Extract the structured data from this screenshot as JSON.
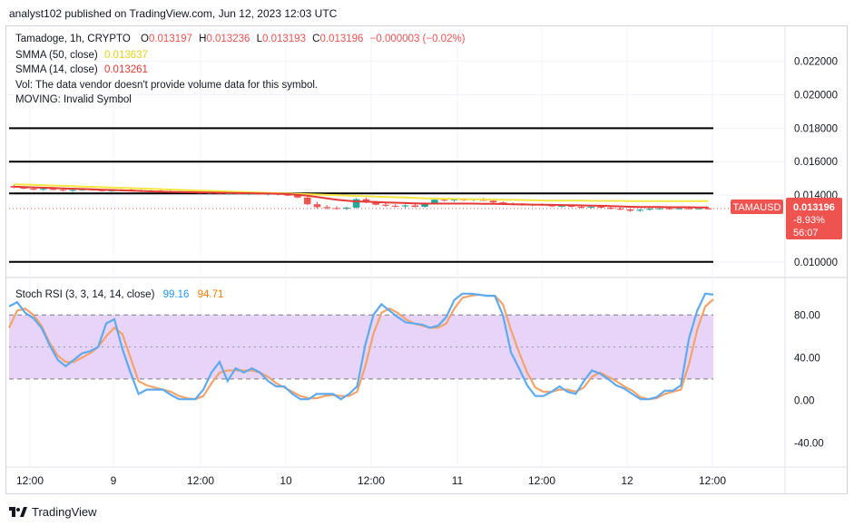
{
  "publisher": "analyst102 published on TradingView.com, Jun 12, 2023 12:03 UTC",
  "legend": {
    "symbol": "Tamadoge, 1h, CRYPTO",
    "o_label": "O",
    "o_value": "0.013197",
    "h_label": "H",
    "h_value": "0.013236",
    "l_label": "L",
    "l_value": "0.013193",
    "c_label": "C",
    "c_value": "0.013196",
    "change": "−0.000003 (−0.02%)",
    "smma50_label": "SMMA (50, close)",
    "smma50_value": "0.013637",
    "smma14_label": "SMMA (14, close)",
    "smma14_value": "0.013261",
    "vol_note": "Vol: The data vendor doesn't provide volume data for this symbol.",
    "moving_note": "MOVING: Invalid Symbol"
  },
  "price_tag": {
    "ticker": "TAMAUSD",
    "price": "0.013196",
    "change_pct": "-8.93%",
    "countdown": "56:07"
  },
  "rsi_legend": {
    "label": "Stoch RSI (3, 3, 14, 14, close)",
    "k_value": "99.16",
    "d_value": "94.71"
  },
  "footer": {
    "brand": "TradingView"
  },
  "colors": {
    "up": "#26a69a",
    "down": "#ef5350",
    "smma50": "#f5e642",
    "smma14": "#e53935",
    "rsi_k": "#5eaaf0",
    "rsi_d": "#f4a36b",
    "rsi_band": "#e4ccf8",
    "tag": "#ef5350"
  },
  "chart_data": [
    {
      "type": "candlestick",
      "y_ticks": [
        "0.022000",
        "0.020000",
        "0.018000",
        "0.016000",
        "0.014000",
        "0.010000"
      ],
      "ylim": [
        0.0095,
        0.0235
      ],
      "x_ticks": [
        "12:00",
        "9",
        "12:00",
        "10",
        "12:00",
        "11",
        "12:00",
        "12",
        "12:00"
      ],
      "horizontal_levels": [
        0.018,
        0.016,
        0.0141,
        0.01
      ],
      "last_price": 0.013196,
      "candles": [
        [
          0.01455,
          0.01462,
          0.0144,
          0.01445
        ],
        [
          0.01445,
          0.01452,
          0.01435,
          0.01438
        ],
        [
          0.01438,
          0.01445,
          0.01428,
          0.01432
        ],
        [
          0.01432,
          0.0144,
          0.01425,
          0.01437
        ],
        [
          0.01437,
          0.01442,
          0.01428,
          0.01431
        ],
        [
          0.01431,
          0.01438,
          0.01422,
          0.01426
        ],
        [
          0.01426,
          0.01434,
          0.0142,
          0.0143
        ],
        [
          0.0143,
          0.01438,
          0.01424,
          0.01434
        ],
        [
          0.01434,
          0.0144,
          0.01426,
          0.01429
        ],
        [
          0.01429,
          0.01436,
          0.0142,
          0.01424
        ],
        [
          0.01424,
          0.01432,
          0.01418,
          0.01428
        ],
        [
          0.01428,
          0.01436,
          0.01422,
          0.01432
        ],
        [
          0.01432,
          0.01438,
          0.01424,
          0.01427
        ],
        [
          0.01427,
          0.01432,
          0.01418,
          0.01422
        ],
        [
          0.01422,
          0.0143,
          0.01416,
          0.01426
        ],
        [
          0.01426,
          0.01432,
          0.01418,
          0.01421
        ],
        [
          0.01421,
          0.01428,
          0.01414,
          0.01418
        ],
        [
          0.01418,
          0.01426,
          0.01412,
          0.01422
        ],
        [
          0.01422,
          0.01428,
          0.01414,
          0.01416
        ],
        [
          0.01416,
          0.01422,
          0.01408,
          0.01412
        ],
        [
          0.01412,
          0.0142,
          0.01406,
          0.01415
        ],
        [
          0.01415,
          0.0142,
          0.01404,
          0.01408
        ],
        [
          0.01408,
          0.01416,
          0.01402,
          0.01412
        ],
        [
          0.01412,
          0.01418,
          0.01404,
          0.01406
        ],
        [
          0.01406,
          0.01414,
          0.014,
          0.0141
        ],
        [
          0.0141,
          0.01416,
          0.01402,
          0.01405
        ],
        [
          0.01405,
          0.01412,
          0.01398,
          0.01408
        ],
        [
          0.01408,
          0.01414,
          0.01398,
          0.01402
        ],
        [
          0.01402,
          0.01408,
          0.01394,
          0.01398
        ],
        [
          0.01398,
          0.01402,
          0.0138,
          0.01385
        ],
        [
          0.01385,
          0.0139,
          0.0134,
          0.01345
        ],
        [
          0.01345,
          0.0136,
          0.0132,
          0.01328
        ],
        [
          0.01328,
          0.0134,
          0.01315,
          0.01322
        ],
        [
          0.01322,
          0.01334,
          0.01312,
          0.01318
        ],
        [
          0.01318,
          0.0133,
          0.0131,
          0.01325
        ],
        [
          0.01325,
          0.01382,
          0.0132,
          0.01375
        ],
        [
          0.01375,
          0.01385,
          0.0135,
          0.01356
        ],
        [
          0.01356,
          0.01365,
          0.01338,
          0.01342
        ],
        [
          0.01342,
          0.01352,
          0.0133,
          0.01336
        ],
        [
          0.01336,
          0.01346,
          0.01326,
          0.01332
        ],
        [
          0.01332,
          0.01344,
          0.01322,
          0.01338
        ],
        [
          0.01338,
          0.01348,
          0.01326,
          0.0133
        ],
        [
          0.0133,
          0.01356,
          0.01325,
          0.0135
        ],
        [
          0.0135,
          0.0138,
          0.01345,
          0.01372
        ],
        [
          0.01372,
          0.01382,
          0.01362,
          0.01368
        ],
        [
          0.01368,
          0.01378,
          0.01358,
          0.01374
        ],
        [
          0.01374,
          0.01382,
          0.01364,
          0.0137
        ],
        [
          0.0137,
          0.0138,
          0.01362,
          0.01376
        ],
        [
          0.01376,
          0.01384,
          0.01364,
          0.01366
        ],
        [
          0.01366,
          0.01372,
          0.01352,
          0.01356
        ],
        [
          0.01356,
          0.01362,
          0.01344,
          0.01348
        ],
        [
          0.01348,
          0.01356,
          0.01338,
          0.01344
        ],
        [
          0.01344,
          0.01352,
          0.01336,
          0.0134
        ],
        [
          0.0134,
          0.01348,
          0.01332,
          0.01344
        ],
        [
          0.01344,
          0.0135,
          0.01334,
          0.01338
        ],
        [
          0.01338,
          0.01344,
          0.01328,
          0.01333
        ],
        [
          0.01333,
          0.01342,
          0.01326,
          0.01336
        ],
        [
          0.01336,
          0.01342,
          0.01326,
          0.0133
        ],
        [
          0.0133,
          0.01336,
          0.0132,
          0.01326
        ],
        [
          0.01326,
          0.01334,
          0.01318,
          0.0133
        ],
        [
          0.0133,
          0.01336,
          0.0132,
          0.01324
        ],
        [
          0.01324,
          0.0133,
          0.01314,
          0.01318
        ],
        [
          0.01318,
          0.01326,
          0.0131,
          0.01314
        ],
        [
          0.01314,
          0.0132,
          0.013,
          0.01306
        ],
        [
          0.01306,
          0.01318,
          0.013,
          0.01312
        ],
        [
          0.01312,
          0.01324,
          0.01306,
          0.01318
        ],
        [
          0.01318,
          0.01324,
          0.01312,
          0.0132
        ],
        [
          0.0132,
          0.01324,
          0.01314,
          0.01318
        ],
        [
          0.01318,
          0.01322,
          0.01316,
          0.0132
        ],
        [
          0.0132,
          0.01323,
          0.01318,
          0.01319
        ],
        [
          0.01319,
          0.01322,
          0.01317,
          0.0132
        ],
        [
          0.013197,
          0.013236,
          0.013193,
          0.013196
        ]
      ],
      "smma50": [
        0.01465,
        0.01463,
        0.01461,
        0.01459,
        0.01457,
        0.01455,
        0.01453,
        0.01451,
        0.01449,
        0.01447,
        0.01445,
        0.01443,
        0.01441,
        0.01439,
        0.01437,
        0.01435,
        0.01433,
        0.01431,
        0.01429,
        0.01427,
        0.01425,
        0.01423,
        0.01421,
        0.01419,
        0.01417,
        0.01415,
        0.01413,
        0.01411,
        0.01409,
        0.01407,
        0.01405,
        0.01403,
        0.01401,
        0.01399,
        0.01397,
        0.01395,
        0.01393,
        0.01391,
        0.01389,
        0.01387,
        0.01385,
        0.01383,
        0.01381,
        0.01379,
        0.01378,
        0.01377,
        0.01376,
        0.01375,
        0.01374,
        0.01373,
        0.01372,
        0.01371,
        0.0137,
        0.01369,
        0.01368,
        0.01367,
        0.01366,
        0.01366,
        0.01366,
        0.01365,
        0.01365,
        0.01365,
        0.01365,
        0.01364,
        0.01364,
        0.01364,
        0.01364,
        0.01364,
        0.01364,
        0.01364,
        0.01364,
        0.013637
      ],
      "smma14": [
        0.0145,
        0.01448,
        0.01446,
        0.01444,
        0.01442,
        0.0144,
        0.01438,
        0.01436,
        0.01434,
        0.01432,
        0.0143,
        0.01428,
        0.01426,
        0.01424,
        0.01422,
        0.0142,
        0.01419,
        0.01418,
        0.01417,
        0.01416,
        0.01415,
        0.01414,
        0.01413,
        0.01412,
        0.01411,
        0.0141,
        0.01409,
        0.01408,
        0.01406,
        0.01402,
        0.01396,
        0.01388,
        0.0138,
        0.01372,
        0.01366,
        0.01362,
        0.0136,
        0.01358,
        0.01356,
        0.01354,
        0.01352,
        0.0135,
        0.01349,
        0.01349,
        0.01349,
        0.01349,
        0.01349,
        0.01349,
        0.01348,
        0.01347,
        0.01346,
        0.01345,
        0.01344,
        0.01343,
        0.01342,
        0.01341,
        0.0134,
        0.01339,
        0.01338,
        0.01337,
        0.01336,
        0.01334,
        0.01332,
        0.0133,
        0.01329,
        0.01328,
        0.01328,
        0.01327,
        0.01327,
        0.01327,
        0.01326,
        0.013261
      ]
    },
    {
      "type": "line",
      "title": "Stoch RSI (3, 3, 14, 14, close)",
      "y_ticks": [
        "80.00",
        "40.00",
        "0.00",
        "-40.00"
      ],
      "ylim": [
        -60,
        110
      ],
      "band": [
        20,
        80
      ],
      "midline": 50,
      "series": [
        {
          "name": "K",
          "values": [
            88,
            92,
            82,
            77,
            68,
            52,
            38,
            32,
            38,
            44,
            46,
            50,
            72,
            76,
            48,
            26,
            6,
            10,
            10,
            10,
            5,
            1,
            1,
            1,
            10,
            26,
            36,
            18,
            30,
            26,
            30,
            26,
            18,
            13,
            13,
            6,
            1,
            1,
            6,
            6,
            6,
            1,
            6,
            13,
            52,
            80,
            90,
            84,
            78,
            73,
            72,
            71,
            68,
            70,
            78,
            94,
            100,
            100,
            99,
            98,
            98,
            80,
            45,
            30,
            14,
            4,
            4,
            8,
            13,
            8,
            6,
            18,
            28,
            25,
            20,
            14,
            11,
            6,
            1,
            1,
            3,
            9,
            9,
            14,
            58,
            84,
            100,
            99
          ]
        },
        {
          "name": "D",
          "values": [
            68,
            84,
            86,
            80,
            70,
            54,
            42,
            36,
            36,
            40,
            44,
            50,
            60,
            68,
            62,
            40,
            18,
            14,
            12,
            10,
            8,
            4,
            2,
            1,
            4,
            16,
            26,
            28,
            28,
            28,
            28,
            26,
            22,
            16,
            12,
            8,
            4,
            2,
            2,
            4,
            5,
            4,
            4,
            8,
            32,
            62,
            82,
            86,
            82,
            76,
            72,
            70,
            68,
            68,
            72,
            86,
            96,
            98,
            99,
            98,
            98,
            90,
            66,
            45,
            26,
            12,
            8,
            8,
            10,
            10,
            8,
            12,
            22,
            26,
            22,
            18,
            13,
            9,
            3,
            1,
            2,
            6,
            8,
            10,
            34,
            66,
            88,
            94.71
          ]
        }
      ]
    }
  ]
}
